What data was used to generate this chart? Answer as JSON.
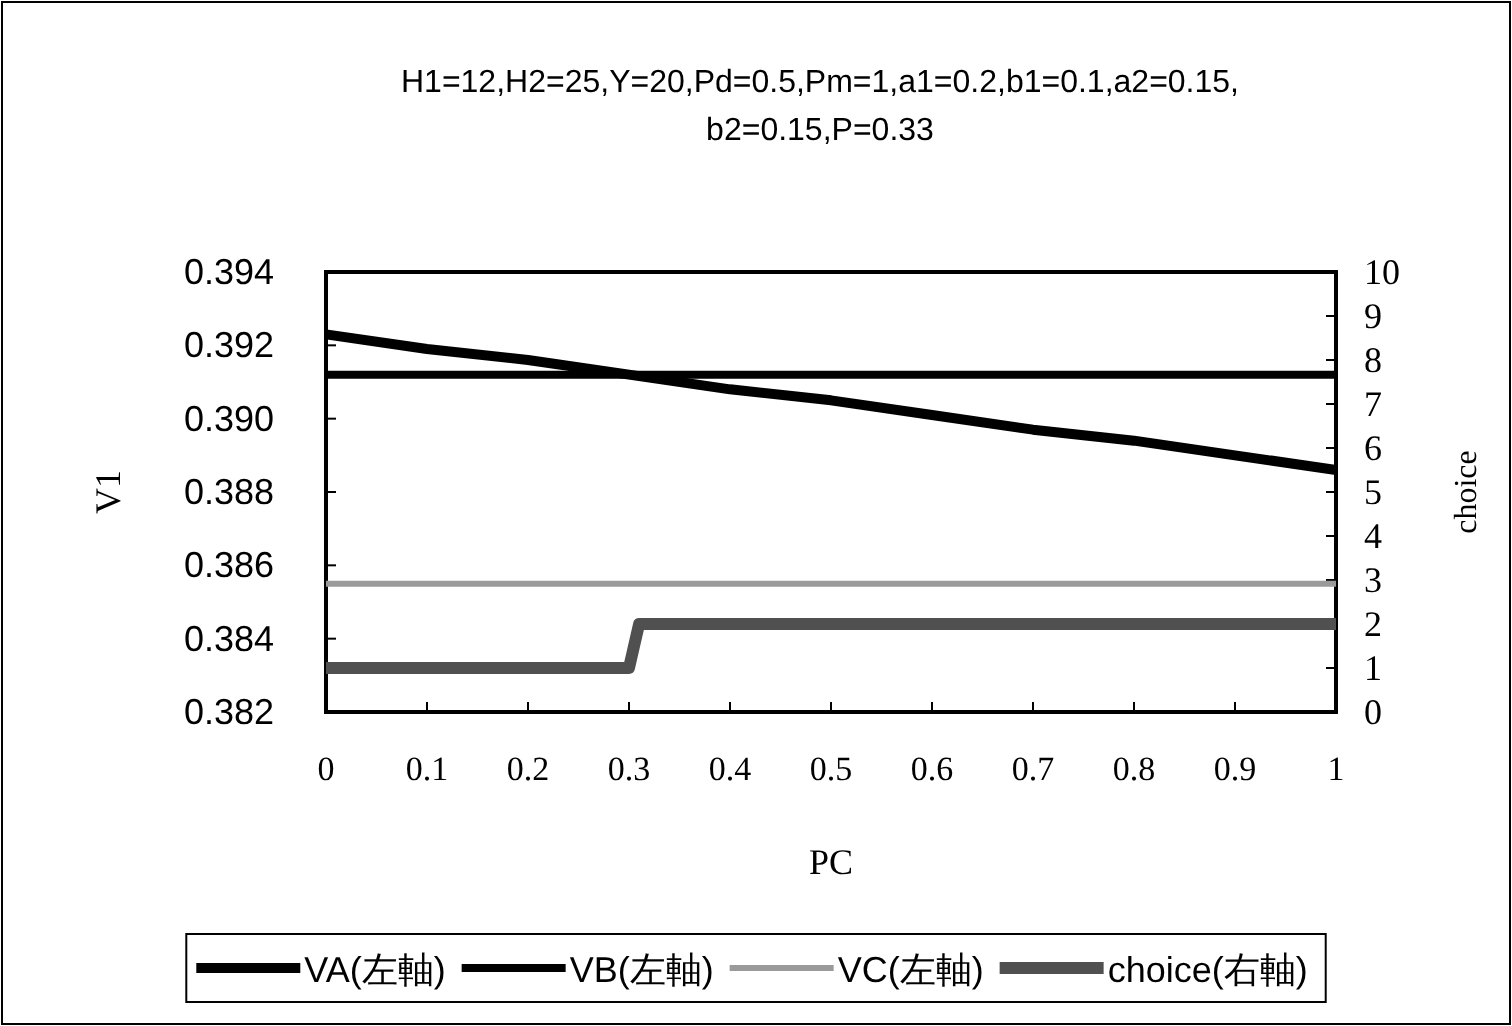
{
  "chart_data": {
    "type": "line",
    "title": "H1=12,H2=25,Y=20,Pd=0.5,Pm=1,a1=0.2,b1=0.1,a2=0.15,b2=0.15,P=0.33",
    "xlabel": "PC",
    "ylabel": "V1",
    "y2label": "choice",
    "x": [
      0,
      0.1,
      0.2,
      0.3,
      0.4,
      0.5,
      0.6,
      0.7,
      0.8,
      0.9,
      1
    ],
    "series": [
      {
        "name": "VA(左軸)",
        "color": "#000000",
        "values": [
          0.3923,
          0.3919,
          0.3916,
          0.3912,
          0.3908,
          0.3905,
          0.3901,
          0.3897,
          0.3894,
          0.389,
          0.3886
        ]
      },
      {
        "name": "VB(左軸)",
        "color": "#000000",
        "values": [
          0.3912,
          0.3912,
          0.3912,
          0.3912,
          0.3912,
          0.3912,
          0.3912,
          0.3912,
          0.3912,
          0.3912,
          0.3912
        ]
      },
      {
        "name": "VC(左軸)",
        "color": "#9a9a9a",
        "values": [
          0.3855,
          0.3855,
          0.3855,
          0.3855,
          0.3855,
          0.3855,
          0.3855,
          0.3855,
          0.3855,
          0.3855,
          0.3855
        ]
      },
      {
        "name": "choice(右軸)",
        "color": "#505050",
        "axis": "y2",
        "x": [
          0,
          0.3,
          0.31,
          1
        ],
        "values": [
          1,
          1,
          2,
          2
        ]
      }
    ],
    "xlim": [
      0,
      1
    ],
    "xticks": [
      0,
      0.1,
      0.2,
      0.3,
      0.4,
      0.5,
      0.6,
      0.7,
      0.8,
      0.9,
      1
    ],
    "ylim": [
      0.382,
      0.394
    ],
    "yticks": [
      {
        "value": 0.382,
        "label": "0.382"
      },
      {
        "value": 0.384,
        "label": "0.384"
      },
      {
        "value": 0.386,
        "label": "0.386"
      },
      {
        "value": 0.388,
        "label": "0.388"
      },
      {
        "value": 0.39,
        "label": "0.390"
      },
      {
        "value": 0.392,
        "label": "0.392"
      },
      {
        "value": 0.394,
        "label": "0.394"
      }
    ],
    "y2lim": [
      0,
      10
    ],
    "y2ticks": [
      0,
      1,
      2,
      3,
      4,
      5,
      6,
      7,
      8,
      9,
      10
    ],
    "grid": false,
    "legend": "bottom",
    "marker": "none",
    "line_style": "solid"
  }
}
